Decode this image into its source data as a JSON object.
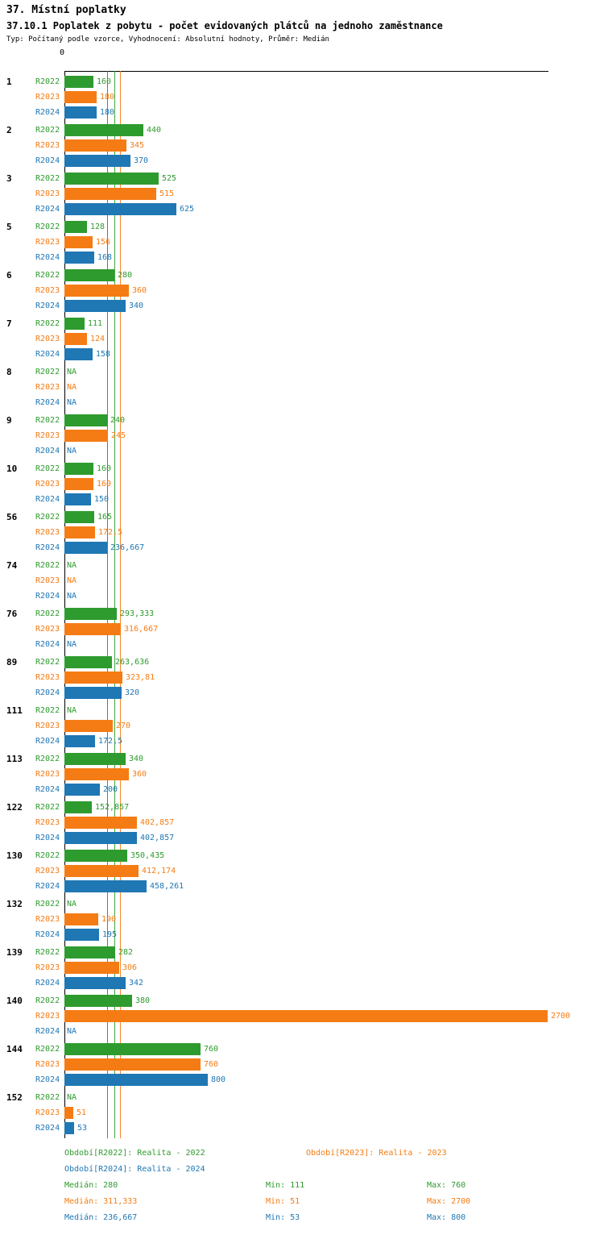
{
  "header": {
    "title": "37. Místní poplatky",
    "subtitle": "37.10.1 Poplatek z pobytu - počet evidovaných plátců na jednoho zaměstnance",
    "meta": "Typ: Počítaný podle vzorce, Vyhodnocení: Absolutní hodnoty, Průměr: Medián"
  },
  "legend": {
    "r2022": "Období[R2022]: Realita - 2022",
    "r2023": "Období[R2023]: Realita - 2023",
    "r2024": "Období[R2024]: Realita - 2024"
  },
  "stats": {
    "r2022": {
      "median": "Medián: 280",
      "min": "Min: 111",
      "max": "Max: 760"
    },
    "r2023": {
      "median": "Medián: 311,333",
      "min": "Min: 51",
      "max": "Max: 2700"
    },
    "r2024": {
      "median": "Medián: 236,667",
      "min": "Min: 53",
      "max": "Max: 800"
    }
  },
  "chart_data": {
    "type": "bar",
    "orientation": "horizontal",
    "title": "37.10.1 Poplatek z pobytu - počet evidovaných plátců na jednoho zaměstnance",
    "axis_zero_label": "0",
    "x_axis": {
      "min": 0,
      "max": 2700
    },
    "grid": false,
    "legend_position": "bottom",
    "series": [
      "R2022",
      "R2023",
      "R2024"
    ],
    "colors": {
      "R2022": "#2e9b2e",
      "R2023": "#f57c14",
      "R2024": "#1f77b4"
    },
    "medians": [
      {
        "series": "R2022",
        "value": 280
      },
      {
        "series": "R2023",
        "value": 311.333
      },
      {
        "series": "R2024",
        "value": 236.667
      }
    ],
    "mins": {
      "R2022": 111,
      "R2023": 51,
      "R2024": 53
    },
    "maxs": {
      "R2022": 760,
      "R2023": 2700,
      "R2024": 800
    },
    "groups": [
      {
        "id": "1",
        "bars": [
          {
            "value": 160,
            "text": "160"
          },
          {
            "value": 180,
            "text": "180"
          },
          {
            "value": 180,
            "text": "180"
          }
        ]
      },
      {
        "id": "2",
        "bars": [
          {
            "value": 440,
            "text": "440"
          },
          {
            "value": 345,
            "text": "345"
          },
          {
            "value": 370,
            "text": "370"
          }
        ]
      },
      {
        "id": "3",
        "bars": [
          {
            "value": 525,
            "text": "525"
          },
          {
            "value": 515,
            "text": "515"
          },
          {
            "value": 625,
            "text": "625"
          }
        ]
      },
      {
        "id": "5",
        "bars": [
          {
            "value": 128,
            "text": "128"
          },
          {
            "value": 156,
            "text": "156"
          },
          {
            "value": 168,
            "text": "168"
          }
        ]
      },
      {
        "id": "6",
        "bars": [
          {
            "value": 280,
            "text": "280"
          },
          {
            "value": 360,
            "text": "360"
          },
          {
            "value": 340,
            "text": "340"
          }
        ]
      },
      {
        "id": "7",
        "bars": [
          {
            "value": 111,
            "text": "111"
          },
          {
            "value": 124,
            "text": "124"
          },
          {
            "value": 158,
            "text": "158"
          }
        ]
      },
      {
        "id": "8",
        "bars": [
          {
            "value": null,
            "text": "NA"
          },
          {
            "value": null,
            "text": "NA"
          },
          {
            "value": null,
            "text": "NA"
          }
        ]
      },
      {
        "id": "9",
        "bars": [
          {
            "value": 240,
            "text": "240"
          },
          {
            "value": 245,
            "text": "245"
          },
          {
            "value": null,
            "text": "NA"
          }
        ]
      },
      {
        "id": "10",
        "bars": [
          {
            "value": 160,
            "text": "160"
          },
          {
            "value": 160,
            "text": "160"
          },
          {
            "value": 150,
            "text": "150"
          }
        ]
      },
      {
        "id": "56",
        "bars": [
          {
            "value": 165,
            "text": "165"
          },
          {
            "value": 172.5,
            "text": "172,5"
          },
          {
            "value": 236.667,
            "text": "236,667"
          }
        ]
      },
      {
        "id": "74",
        "bars": [
          {
            "value": null,
            "text": "NA"
          },
          {
            "value": null,
            "text": "NA"
          },
          {
            "value": null,
            "text": "NA"
          }
        ]
      },
      {
        "id": "76",
        "bars": [
          {
            "value": 293.333,
            "text": "293,333"
          },
          {
            "value": 316.667,
            "text": "316,667"
          },
          {
            "value": null,
            "text": "NA"
          }
        ]
      },
      {
        "id": "89",
        "bars": [
          {
            "value": 263.636,
            "text": "263,636"
          },
          {
            "value": 323.81,
            "text": "323,81"
          },
          {
            "value": 320,
            "text": "320"
          }
        ]
      },
      {
        "id": "111",
        "bars": [
          {
            "value": null,
            "text": "NA"
          },
          {
            "value": 270,
            "text": "270"
          },
          {
            "value": 172.5,
            "text": "172,5"
          }
        ]
      },
      {
        "id": "113",
        "bars": [
          {
            "value": 340,
            "text": "340"
          },
          {
            "value": 360,
            "text": "360"
          },
          {
            "value": 200,
            "text": "200"
          }
        ]
      },
      {
        "id": "122",
        "bars": [
          {
            "value": 152.857,
            "text": "152,857"
          },
          {
            "value": 402.857,
            "text": "402,857"
          },
          {
            "value": 402.857,
            "text": "402,857"
          }
        ]
      },
      {
        "id": "130",
        "bars": [
          {
            "value": 350.435,
            "text": "350,435"
          },
          {
            "value": 412.174,
            "text": "412,174"
          },
          {
            "value": 458.261,
            "text": "458,261"
          }
        ]
      },
      {
        "id": "132",
        "bars": [
          {
            "value": null,
            "text": "NA"
          },
          {
            "value": 190,
            "text": "190"
          },
          {
            "value": 195,
            "text": "195"
          }
        ]
      },
      {
        "id": "139",
        "bars": [
          {
            "value": 282,
            "text": "282"
          },
          {
            "value": 306,
            "text": "306"
          },
          {
            "value": 342,
            "text": "342"
          }
        ]
      },
      {
        "id": "140",
        "bars": [
          {
            "value": 380,
            "text": "380"
          },
          {
            "value": 2700,
            "text": "2700"
          },
          {
            "value": null,
            "text": "NA"
          }
        ]
      },
      {
        "id": "144",
        "bars": [
          {
            "value": 760,
            "text": "760"
          },
          {
            "value": 760,
            "text": "760"
          },
          {
            "value": 800,
            "text": "800"
          }
        ]
      },
      {
        "id": "152",
        "bars": [
          {
            "value": null,
            "text": "NA"
          },
          {
            "value": 51,
            "text": "51"
          },
          {
            "value": 53,
            "text": "53"
          }
        ]
      }
    ]
  }
}
